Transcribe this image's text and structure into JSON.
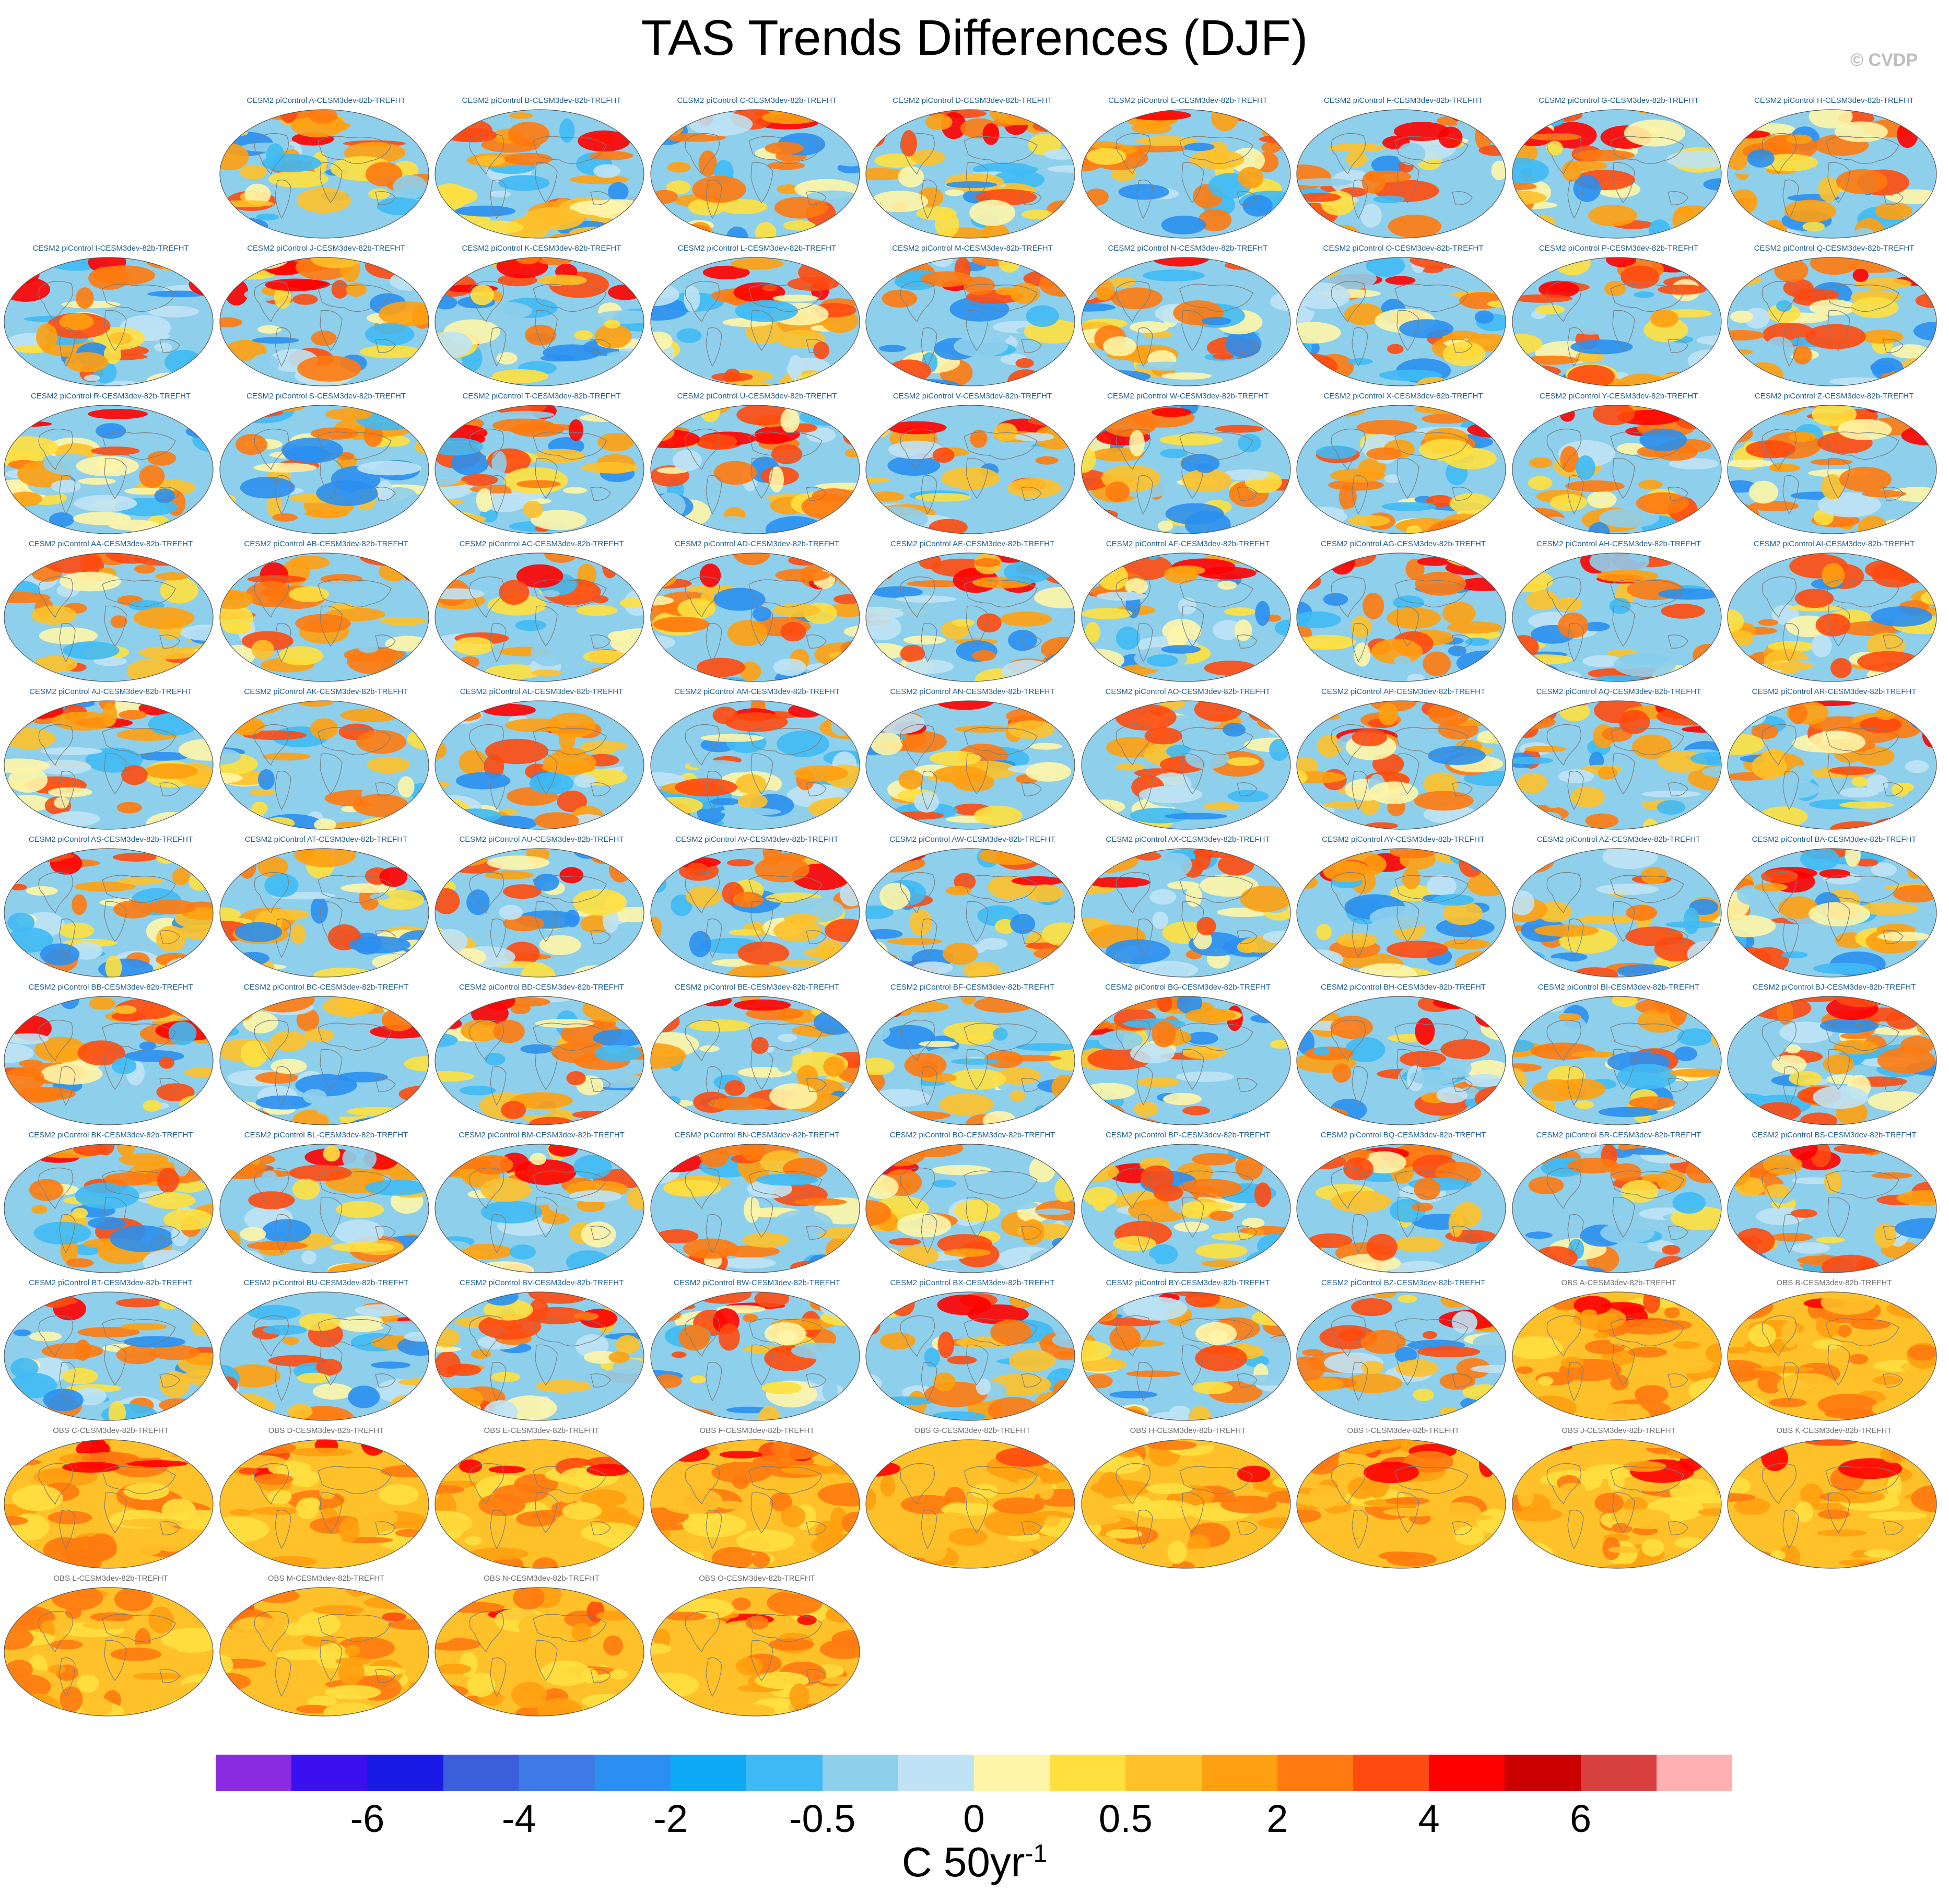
{
  "title": "TAS Trends Differences (DJF)",
  "credit": "© CVDP",
  "colors": {
    "model_label": "#1f5f8f",
    "obs_label": "#6e6e6e",
    "continents": "#7d7d7d"
  },
  "panels": [
    {
      "label": "CESM2 piControl A-CESM3dev-82b-TREFHT",
      "kind": "model"
    },
    {
      "label": "CESM2 piControl B-CESM3dev-82b-TREFHT",
      "kind": "model"
    },
    {
      "label": "CESM2 piControl C-CESM3dev-82b-TREFHT",
      "kind": "model"
    },
    {
      "label": "CESM2 piControl D-CESM3dev-82b-TREFHT",
      "kind": "model"
    },
    {
      "label": "CESM2 piControl E-CESM3dev-82b-TREFHT",
      "kind": "model"
    },
    {
      "label": "CESM2 piControl F-CESM3dev-82b-TREFHT",
      "kind": "model"
    },
    {
      "label": "CESM2 piControl G-CESM3dev-82b-TREFHT",
      "kind": "model"
    },
    {
      "label": "CESM2 piControl H-CESM3dev-82b-TREFHT",
      "kind": "model"
    },
    {
      "label": "CESM2 piControl I-CESM3dev-82b-TREFHT",
      "kind": "model"
    },
    {
      "label": "CESM2 piControl J-CESM3dev-82b-TREFHT",
      "kind": "model"
    },
    {
      "label": "CESM2 piControl K-CESM3dev-82b-TREFHT",
      "kind": "model"
    },
    {
      "label": "CESM2 piControl L-CESM3dev-82b-TREFHT",
      "kind": "model"
    },
    {
      "label": "CESM2 piControl M-CESM3dev-82b-TREFHT",
      "kind": "model"
    },
    {
      "label": "CESM2 piControl N-CESM3dev-82b-TREFHT",
      "kind": "model"
    },
    {
      "label": "CESM2 piControl O-CESM3dev-82b-TREFHT",
      "kind": "model"
    },
    {
      "label": "CESM2 piControl P-CESM3dev-82b-TREFHT",
      "kind": "model"
    },
    {
      "label": "CESM2 piControl Q-CESM3dev-82b-TREFHT",
      "kind": "model"
    },
    {
      "label": "CESM2 piControl R-CESM3dev-82b-TREFHT",
      "kind": "model"
    },
    {
      "label": "CESM2 piControl S-CESM3dev-82b-TREFHT",
      "kind": "model"
    },
    {
      "label": "CESM2 piControl T-CESM3dev-82b-TREFHT",
      "kind": "model"
    },
    {
      "label": "CESM2 piControl U-CESM3dev-82b-TREFHT",
      "kind": "model"
    },
    {
      "label": "CESM2 piControl V-CESM3dev-82b-TREFHT",
      "kind": "model"
    },
    {
      "label": "CESM2 piControl W-CESM3dev-82b-TREFHT",
      "kind": "model"
    },
    {
      "label": "CESM2 piControl X-CESM3dev-82b-TREFHT",
      "kind": "model"
    },
    {
      "label": "CESM2 piControl Y-CESM3dev-82b-TREFHT",
      "kind": "model"
    },
    {
      "label": "CESM2 piControl Z-CESM3dev-82b-TREFHT",
      "kind": "model"
    },
    {
      "label": "CESM2 piControl AA-CESM3dev-82b-TREFHT",
      "kind": "model"
    },
    {
      "label": "CESM2 piControl AB-CESM3dev-82b-TREFHT",
      "kind": "model"
    },
    {
      "label": "CESM2 piControl AC-CESM3dev-82b-TREFHT",
      "kind": "model"
    },
    {
      "label": "CESM2 piControl AD-CESM3dev-82b-TREFHT",
      "kind": "model"
    },
    {
      "label": "CESM2 piControl AE-CESM3dev-82b-TREFHT",
      "kind": "model"
    },
    {
      "label": "CESM2 piControl AF-CESM3dev-82b-TREFHT",
      "kind": "model"
    },
    {
      "label": "CESM2 piControl AG-CESM3dev-82b-TREFHT",
      "kind": "model"
    },
    {
      "label": "CESM2 piControl AH-CESM3dev-82b-TREFHT",
      "kind": "model"
    },
    {
      "label": "CESM2 piControl AI-CESM3dev-82b-TREFHT",
      "kind": "model"
    },
    {
      "label": "CESM2 piControl AJ-CESM3dev-82b-TREFHT",
      "kind": "model"
    },
    {
      "label": "CESM2 piControl AK-CESM3dev-82b-TREFHT",
      "kind": "model"
    },
    {
      "label": "CESM2 piControl AL-CESM3dev-82b-TREFHT",
      "kind": "model"
    },
    {
      "label": "CESM2 piControl AM-CESM3dev-82b-TREFHT",
      "kind": "model"
    },
    {
      "label": "CESM2 piControl AN-CESM3dev-82b-TREFHT",
      "kind": "model"
    },
    {
      "label": "CESM2 piControl AO-CESM3dev-82b-TREFHT",
      "kind": "model"
    },
    {
      "label": "CESM2 piControl AP-CESM3dev-82b-TREFHT",
      "kind": "model"
    },
    {
      "label": "CESM2 piControl AQ-CESM3dev-82b-TREFHT",
      "kind": "model"
    },
    {
      "label": "CESM2 piControl AR-CESM3dev-82b-TREFHT",
      "kind": "model"
    },
    {
      "label": "CESM2 piControl AS-CESM3dev-82b-TREFHT",
      "kind": "model"
    },
    {
      "label": "CESM2 piControl AT-CESM3dev-82b-TREFHT",
      "kind": "model"
    },
    {
      "label": "CESM2 piControl AU-CESM3dev-82b-TREFHT",
      "kind": "model"
    },
    {
      "label": "CESM2 piControl AV-CESM3dev-82b-TREFHT",
      "kind": "model"
    },
    {
      "label": "CESM2 piControl AW-CESM3dev-82b-TREFHT",
      "kind": "model"
    },
    {
      "label": "CESM2 piControl AX-CESM3dev-82b-TREFHT",
      "kind": "model"
    },
    {
      "label": "CESM2 piControl AY-CESM3dev-82b-TREFHT",
      "kind": "model"
    },
    {
      "label": "CESM2 piControl AZ-CESM3dev-82b-TREFHT",
      "kind": "model"
    },
    {
      "label": "CESM2 piControl BA-CESM3dev-82b-TREFHT",
      "kind": "model"
    },
    {
      "label": "CESM2 piControl BB-CESM3dev-82b-TREFHT",
      "kind": "model"
    },
    {
      "label": "CESM2 piControl BC-CESM3dev-82b-TREFHT",
      "kind": "model"
    },
    {
      "label": "CESM2 piControl BD-CESM3dev-82b-TREFHT",
      "kind": "model"
    },
    {
      "label": "CESM2 piControl BE-CESM3dev-82b-TREFHT",
      "kind": "model"
    },
    {
      "label": "CESM2 piControl BF-CESM3dev-82b-TREFHT",
      "kind": "model"
    },
    {
      "label": "CESM2 piControl BG-CESM3dev-82b-TREFHT",
      "kind": "model"
    },
    {
      "label": "CESM2 piControl BH-CESM3dev-82b-TREFHT",
      "kind": "model"
    },
    {
      "label": "CESM2 piControl BI-CESM3dev-82b-TREFHT",
      "kind": "model"
    },
    {
      "label": "CESM2 piControl BJ-CESM3dev-82b-TREFHT",
      "kind": "model"
    },
    {
      "label": "CESM2 piControl BK-CESM3dev-82b-TREFHT",
      "kind": "model"
    },
    {
      "label": "CESM2 piControl BL-CESM3dev-82b-TREFHT",
      "kind": "model"
    },
    {
      "label": "CESM2 piControl BM-CESM3dev-82b-TREFHT",
      "kind": "model"
    },
    {
      "label": "CESM2 piControl BN-CESM3dev-82b-TREFHT",
      "kind": "model"
    },
    {
      "label": "CESM2 piControl BO-CESM3dev-82b-TREFHT",
      "kind": "model"
    },
    {
      "label": "CESM2 piControl BP-CESM3dev-82b-TREFHT",
      "kind": "model"
    },
    {
      "label": "CESM2 piControl BQ-CESM3dev-82b-TREFHT",
      "kind": "model"
    },
    {
      "label": "CESM2 piControl BR-CESM3dev-82b-TREFHT",
      "kind": "model"
    },
    {
      "label": "CESM2 piControl BS-CESM3dev-82b-TREFHT",
      "kind": "model"
    },
    {
      "label": "CESM2 piControl BT-CESM3dev-82b-TREFHT",
      "kind": "model"
    },
    {
      "label": "CESM2 piControl BU-CESM3dev-82b-TREFHT",
      "kind": "model"
    },
    {
      "label": "CESM2 piControl BV-CESM3dev-82b-TREFHT",
      "kind": "model"
    },
    {
      "label": "CESM2 piControl BW-CESM3dev-82b-TREFHT",
      "kind": "model"
    },
    {
      "label": "CESM2 piControl BX-CESM3dev-82b-TREFHT",
      "kind": "model"
    },
    {
      "label": "CESM2 piControl BY-CESM3dev-82b-TREFHT",
      "kind": "model"
    },
    {
      "label": "CESM2 piControl BZ-CESM3dev-82b-TREFHT",
      "kind": "model"
    },
    {
      "label": "OBS A-CESM3dev-82b-TREFHT",
      "kind": "obs"
    },
    {
      "label": "OBS B-CESM3dev-82b-TREFHT",
      "kind": "obs"
    },
    {
      "label": "OBS C-CESM3dev-82b-TREFHT",
      "kind": "obs"
    },
    {
      "label": "OBS D-CESM3dev-82b-TREFHT",
      "kind": "obs"
    },
    {
      "label": "OBS E-CESM3dev-82b-TREFHT",
      "kind": "obs"
    },
    {
      "label": "OBS F-CESM3dev-82b-TREFHT",
      "kind": "obs"
    },
    {
      "label": "OBS G-CESM3dev-82b-TREFHT",
      "kind": "obs"
    },
    {
      "label": "OBS H-CESM3dev-82b-TREFHT",
      "kind": "obs"
    },
    {
      "label": "OBS I-CESM3dev-82b-TREFHT",
      "kind": "obs"
    },
    {
      "label": "OBS J-CESM3dev-82b-TREFHT",
      "kind": "obs"
    },
    {
      "label": "OBS K-CESM3dev-82b-TREFHT",
      "kind": "obs"
    },
    {
      "label": "OBS L-CESM3dev-82b-TREFHT",
      "kind": "obs"
    },
    {
      "label": "OBS M-CESM3dev-82b-TREFHT",
      "kind": "obs"
    },
    {
      "label": "OBS N-CESM3dev-82b-TREFHT",
      "kind": "obs"
    },
    {
      "label": "OBS O-CESM3dev-82b-TREFHT",
      "kind": "obs"
    }
  ],
  "colorbar": {
    "colors": [
      "#8a2be2",
      "#3a10f0",
      "#1a1ae6",
      "#3b5fdc",
      "#3d7ae6",
      "#2a8ff0",
      "#0faaf5",
      "#3fbaf5",
      "#8ecfec",
      "#bfe3f5",
      "#fff5a8",
      "#ffe040",
      "#ffc12a",
      "#ffa010",
      "#ff7a10",
      "#ff4a10",
      "#ff0000",
      "#cc0000",
      "#d84040",
      "#ffb0b0"
    ],
    "tick_labels": [
      "-6",
      "-4",
      "-2",
      "-0.5",
      "0",
      "0.5",
      "2",
      "4",
      "6"
    ],
    "tick_boundaries": [
      2,
      4,
      6,
      8,
      10,
      12,
      14,
      16,
      18
    ],
    "units_base": "C 50yr",
    "units_exp": "-1"
  }
}
